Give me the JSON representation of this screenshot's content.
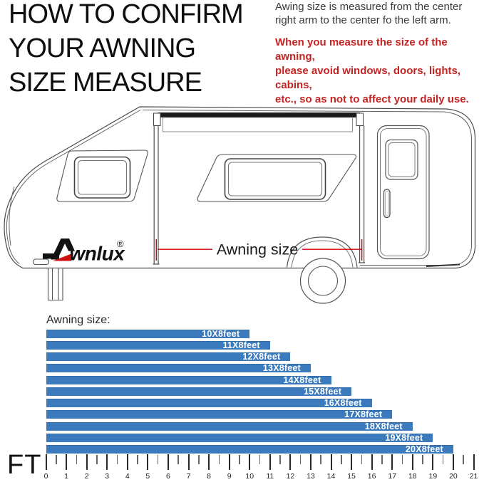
{
  "header": {
    "title": "HOW TO CONFIRM\nYOUR AWNING\nSIZE MEASURE",
    "note": "Awing size is measured from the center\nright arm to the center fo the left arm.",
    "warning": "When you measure the size of the awning,\nplease avoid windows, doors, lights, cabins,\netc., so as not to affect your daily use.",
    "warning_color": "#c32322",
    "note_color": "#3a3a3a"
  },
  "diagram": {
    "brand": {
      "logo_text": "wnlux",
      "registered": "®",
      "accent_color": "#cc1111"
    },
    "dimension_label": "Awning size",
    "dimension_color": "#cc0000"
  },
  "chart_data": {
    "type": "bar",
    "orientation": "horizontal",
    "title": "Awning size:",
    "categories": [
      "10X8feet",
      "11X8feet",
      "12X8feet",
      "13X8feet",
      "14X8feet",
      "15X8feet",
      "16X8feet",
      "17X8feet",
      "18X8feet",
      "19X8feet",
      "20X8feet"
    ],
    "values": [
      10,
      11,
      12,
      13,
      14,
      15,
      16,
      17,
      18,
      19,
      20
    ],
    "unit_label": "FT",
    "xlabel": "FT",
    "xlim": [
      0,
      21
    ],
    "ticks": [
      "0",
      "1",
      "2",
      "3",
      "4",
      "5",
      "6",
      "7",
      "8",
      "9",
      "10",
      "11",
      "12",
      "13",
      "14",
      "15",
      "16",
      "17",
      "18",
      "19",
      "20",
      "21"
    ],
    "bar_color": "#3b7bbd",
    "label_color": "#ffffff",
    "grid": false,
    "legend": false
  }
}
